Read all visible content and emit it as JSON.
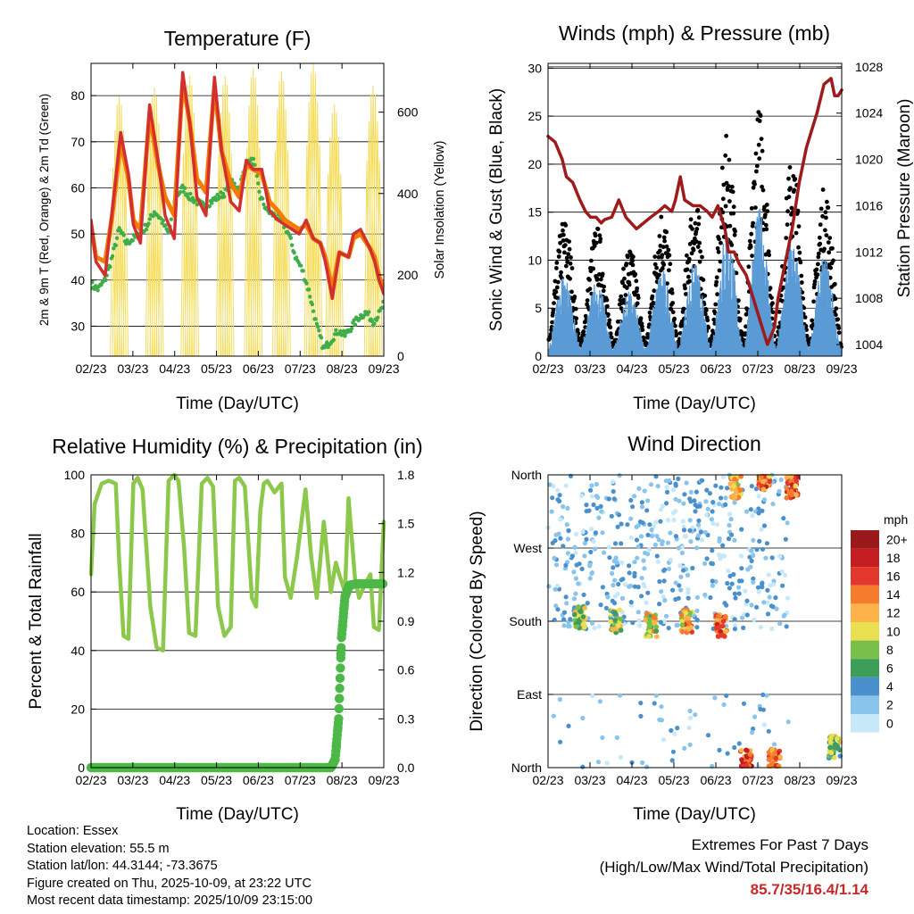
{
  "colors": {
    "temp2m": "#d32f2f",
    "temp9m": "#f57c00",
    "dewpoint": "#3fae49",
    "solar": "#f5dc5a",
    "wind": "#5b9bd5",
    "gust": "#000000",
    "pressure": "#9e1b1b",
    "rh": "#8cc84b",
    "precip": "#4cb847"
  },
  "time_ticks": [
    "02/23",
    "03/23",
    "04/23",
    "05/23",
    "06/23",
    "07/23",
    "08/23",
    "09/23"
  ],
  "chart_data": [
    {
      "type": "line",
      "title": "Temperature (F)",
      "xlabel": "Time (Day/UTC)",
      "ylabel": "2m & 9m T (Red, Orange) & 2m Td (Green)",
      "ylabel_right": "Solar Insolation (Yellow)",
      "ylim": [
        23.5,
        87
      ],
      "ylim_right": [
        0,
        720
      ],
      "yticks": [
        "30",
        "40",
        "50",
        "60",
        "70",
        "80"
      ],
      "yticks_right": [
        "0",
        "200",
        "400",
        "600"
      ],
      "series": [
        {
          "name": "2m T",
          "x": [
            0,
            0.7,
            2,
            3,
            4.2,
            5.3,
            6,
            7,
            8.3,
            9.5,
            10.5,
            11.8,
            13,
            14,
            15,
            16.3,
            17.5,
            18.5,
            19.8,
            21,
            22,
            23,
            24.2,
            25.3,
            26.5,
            27.5,
            28.5,
            29.5,
            30.5,
            31.5,
            32.5,
            33.2,
            34.2,
            35.2,
            36.5,
            37.2,
            38.2,
            39.5,
            40.2,
            40.8,
            41.5
          ],
          "values": [
            53,
            44,
            41,
            55,
            72,
            63,
            52,
            48,
            78,
            66,
            54,
            49,
            85,
            74,
            58,
            54,
            84,
            68,
            57,
            55,
            66,
            64,
            64,
            55,
            53,
            52,
            51,
            50,
            53,
            49,
            48,
            44,
            36,
            46,
            45,
            50,
            51,
            47,
            44,
            40,
            37
          ]
        },
        {
          "name": "9m T",
          "x": [
            0,
            0.7,
            2,
            3,
            4.2,
            5.3,
            6,
            7,
            8.3,
            9.5,
            10.5,
            11.8,
            13,
            14,
            15,
            16.3,
            17.5,
            18.5,
            19.8,
            21,
            22,
            23,
            24.2,
            25.3,
            26.5,
            27.5,
            28.5,
            29.5,
            30.5,
            31.5,
            32.5,
            33.2,
            34.2,
            35.2,
            36.5,
            37.2,
            38.2,
            39.5,
            40.2,
            40.8,
            41.5
          ],
          "values": [
            52,
            45,
            44,
            54,
            70,
            62,
            53,
            51,
            76,
            65,
            58,
            54,
            83,
            74,
            62,
            59,
            82,
            68,
            61,
            58,
            65,
            64,
            63,
            57,
            55,
            53,
            52,
            51,
            52,
            49,
            48,
            45,
            38,
            46,
            45,
            49,
            50,
            47,
            45,
            41,
            38
          ]
        },
        {
          "name": "2m Td",
          "x": [
            0,
            1,
            2,
            3,
            4,
            5,
            6,
            7,
            8,
            9,
            10,
            11,
            12,
            13,
            14,
            15,
            16,
            17,
            18,
            19,
            20,
            21,
            22,
            23,
            24,
            25,
            26,
            27,
            28,
            29,
            30,
            31,
            32,
            33,
            34,
            35,
            36,
            37,
            38,
            39,
            40,
            41,
            41.5
          ],
          "values": [
            39,
            38,
            40,
            45,
            51,
            48,
            49,
            50,
            52,
            55,
            53,
            50,
            58,
            60,
            58,
            57,
            56,
            57,
            58,
            59,
            61,
            60,
            65,
            66,
            58,
            55,
            54,
            53,
            50,
            45,
            42,
            37,
            30,
            25,
            27,
            29,
            28,
            30,
            32,
            33,
            31,
            33,
            35
          ]
        },
        {
          "name": "Solar Insolation",
          "axis": "right",
          "peaks_x": [
            4,
            9,
            14,
            19,
            23,
            27,
            31.5,
            34.5,
            40
          ],
          "peaks": [
            640,
            660,
            690,
            690,
            710,
            700,
            720,
            620,
            665
          ]
        }
      ]
    },
    {
      "type": "line",
      "title": "Winds (mph) & Pressure (mb)",
      "xlabel": "Time (Day/UTC)",
      "ylabel": "Sonic Wind & Gust (Blue, Black)",
      "ylabel_right": "Station Pressure (Maroon)",
      "ylim": [
        0,
        30.5
      ],
      "ylim_right": [
        1003,
        1028.3
      ],
      "yticks": [
        "0",
        "5",
        "10",
        "15",
        "20",
        "25",
        "30"
      ],
      "yticks_right": [
        "1004",
        "1008",
        "1012",
        "1016",
        "1020",
        "1024",
        "1028"
      ],
      "series": [
        {
          "name": "Station Pressure",
          "axis": "right",
          "x": [
            0,
            1,
            2,
            2.6,
            3.5,
            4.5,
            5.3,
            6,
            6.8,
            7.5,
            8,
            9,
            10,
            11,
            12.5,
            13.5,
            14.5,
            15.6,
            16.5,
            17.5,
            18,
            18.7,
            19.3,
            20.5,
            21.5,
            22.5,
            23.2,
            24,
            25,
            25.5,
            26.3,
            27,
            28,
            29,
            30,
            31,
            32,
            32.5,
            33.5,
            34.5,
            35.5,
            36.5,
            37,
            38,
            39,
            40,
            40.5,
            41,
            41.5
          ],
          "values": [
            1022,
            1021.5,
            1020,
            1018.5,
            1018,
            1016.5,
            1015.5,
            1015,
            1015,
            1014.5,
            1014.8,
            1015,
            1016.5,
            1015,
            1014,
            1014.5,
            1015,
            1015.5,
            1016,
            1015.5,
            1016.5,
            1018.5,
            1016.5,
            1016,
            1016,
            1015.5,
            1015,
            1016,
            1014,
            1012,
            1012,
            1011,
            1010,
            1008,
            1006,
            1004,
            1005.5,
            1008,
            1011,
            1014,
            1018,
            1021,
            1022,
            1024,
            1026.5,
            1027,
            1025.5,
            1025.5,
            1026
          ]
        },
        {
          "name": "Sonic Wind",
          "summary": "diurnal cycle, daily peaks 10-16 mph"
        },
        {
          "name": "Gust",
          "summary": "diurnal cycle, daily peaks 15-28 mph"
        }
      ]
    },
    {
      "type": "line",
      "title": "Relative Humidity (%) & Precipitation (in)",
      "xlabel": "Time (Day/UTC)",
      "ylabel": "Percent & Total Rainfall",
      "ylim": [
        0,
        100
      ],
      "ylim_right": [
        0,
        1.8
      ],
      "yticks": [
        "0",
        "20",
        "40",
        "60",
        "80",
        "100"
      ],
      "yticks_right": [
        "0.0",
        "0.3",
        "0.6",
        "0.9",
        "1.2",
        "1.5",
        "1.8"
      ],
      "series": [
        {
          "name": "Relative Humidity",
          "x": [
            0,
            0.5,
            1.5,
            2.5,
            3.5,
            4,
            4.6,
            5.3,
            6,
            6.6,
            7.3,
            8.4,
            9.3,
            10.2,
            11,
            11.8,
            12.4,
            13.2,
            13.9,
            14.8,
            15.7,
            16.5,
            17.3,
            18,
            18.9,
            19.8,
            20.4,
            21,
            21.8,
            22.8,
            23.4,
            24,
            24.5,
            25,
            25.5,
            26,
            27,
            27.5,
            28.3,
            29.2,
            30.4,
            31.2,
            32,
            33,
            34,
            34.7,
            35.3,
            36,
            36.5,
            37.4,
            38,
            38.7,
            39.6,
            40.1,
            40.8,
            41.5
          ],
          "values": [
            66,
            90,
            97,
            98,
            97,
            70,
            45,
            44,
            97,
            99,
            95,
            55,
            41,
            40,
            98,
            100,
            98,
            75,
            46,
            45,
            97,
            99,
            96,
            55,
            45,
            48,
            98,
            99,
            96,
            58,
            55,
            88,
            97,
            98,
            96,
            94,
            97,
            65,
            58,
            72,
            95,
            72,
            58,
            84,
            60,
            70,
            65,
            60,
            92,
            65,
            58,
            62,
            66,
            48,
            47,
            84
          ]
        },
        {
          "name": "Total Precipitation",
          "axis": "right",
          "x": [
            0,
            34,
            34.6,
            35.1,
            35.5,
            36,
            36.6,
            37.5,
            41.5
          ],
          "values": [
            0,
            0,
            0.05,
            0.3,
            0.8,
            1.05,
            1.12,
            1.13,
            1.13
          ]
        }
      ]
    },
    {
      "type": "scatter",
      "title": "Wind Direction",
      "xlabel": "Time (Day/UTC)",
      "ylabel": "Direction (Colored By Speed)",
      "ylim": [
        0,
        360
      ],
      "yticks": [
        "North",
        "East",
        "South",
        "West",
        "North"
      ],
      "legend_title": "mph",
      "legend": [
        "0",
        "2",
        "4",
        "6",
        "8",
        "10",
        "12",
        "14",
        "16",
        "18",
        "20+"
      ],
      "legend_colors": [
        "#c6e8f8",
        "#88c4ec",
        "#4a90cd",
        "#3d9e5a",
        "#78c04a",
        "#e8e050",
        "#fdb24a",
        "#f47c2c",
        "#e4382c",
        "#c41e22",
        "#981a1a"
      ],
      "clusters": [
        {
          "x": 4.5,
          "dir": 185,
          "mph": 8
        },
        {
          "x": 9.6,
          "dir": 180,
          "mph": 8
        },
        {
          "x": 14.6,
          "dir": 175,
          "mph": 10
        },
        {
          "x": 19.6,
          "dir": 180,
          "mph": 12
        },
        {
          "x": 24.5,
          "dir": 175,
          "mph": 14
        },
        {
          "x": 26.5,
          "dir": 345,
          "mph": 12
        },
        {
          "x": 30.5,
          "dir": 355,
          "mph": 14
        },
        {
          "x": 34.5,
          "dir": 345,
          "mph": 14
        },
        {
          "x": 28,
          "dir": 8,
          "mph": 16
        },
        {
          "x": 32,
          "dir": 12,
          "mph": 14
        },
        {
          "x": 40.5,
          "dir": 25,
          "mph": 8
        }
      ]
    }
  ],
  "info": {
    "location": "Location: Essex",
    "elevation": "Station elevation: 55.5 m",
    "latlon": "Station lat/lon: 44.3144; -73.3675",
    "created": "Figure created on Thu, 2025-10-09, at 23:22 UTC",
    "recent": "Most recent data timestamp: 2025/10/09 23:15:00"
  },
  "extremes": {
    "title": "Extremes For Past 7 Days",
    "subtitle": "(High/Low/Max Wind/Total Precipitation)",
    "values": "85.7/35/16.4/1.14"
  }
}
